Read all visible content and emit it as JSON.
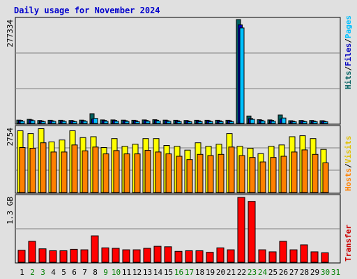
{
  "title": "Daily usage for November 2024",
  "panels": {
    "hits": {
      "ymax_label": "277334",
      "side_labels": [
        "Hits",
        "Files",
        "Pages"
      ]
    },
    "visits": {
      "ymax_label": "2754",
      "side_labels": [
        "Hosts",
        "Visits"
      ]
    },
    "transfer": {
      "ymax_label": "1.3 GB",
      "side_labels": [
        "Transfer"
      ]
    }
  },
  "colors": {
    "hits": "#006060",
    "files": "#0000c0",
    "pages": "#00c0ff",
    "visits": "#ffff00",
    "hosts": "#ff8000",
    "transfer": "#ff0000",
    "weekday_label": "#000000",
    "weekend_label": "#008000",
    "title": "#0000cc",
    "background": "#e0e0e0"
  },
  "chart_data": [
    {
      "type": "bar",
      "title": "Daily usage for November 2024",
      "categories": [
        "1",
        "2",
        "3",
        "4",
        "5",
        "6",
        "7",
        "8",
        "9",
        "10",
        "11",
        "12",
        "13",
        "14",
        "15",
        "16",
        "17",
        "18",
        "19",
        "20",
        "21",
        "22",
        "23",
        "24",
        "25",
        "26",
        "27",
        "28",
        "29",
        "30",
        "31"
      ],
      "weekend_days": [
        "2",
        "3",
        "9",
        "10",
        "16",
        "17",
        "23",
        "24",
        "30",
        "31"
      ],
      "ylim": [
        0,
        277334
      ],
      "series": [
        {
          "name": "Hits",
          "values": [
            9000,
            11000,
            8000,
            8500,
            8500,
            8000,
            9000,
            26000,
            9500,
            9500,
            9000,
            8500,
            9500,
            10000,
            9000,
            8500,
            8000,
            8500,
            8500,
            8500,
            8500,
            277334,
            20000,
            10000,
            9500,
            22500,
            7500,
            8000,
            8000,
            7500,
            0
          ]
        },
        {
          "name": "Files",
          "values": [
            8000,
            9500,
            6500,
            7000,
            7000,
            6500,
            7500,
            12000,
            8000,
            8000,
            7500,
            7000,
            8000,
            8500,
            7500,
            7000,
            6500,
            7000,
            7000,
            7000,
            7000,
            263000,
            13000,
            8500,
            8000,
            12000,
            6000,
            6500,
            6500,
            6000,
            0
          ]
        },
        {
          "name": "Pages",
          "values": [
            6000,
            7500,
            5000,
            5500,
            5500,
            5000,
            6000,
            13500,
            6000,
            6000,
            5500,
            5000,
            6000,
            6500,
            5500,
            5000,
            4500,
            5000,
            5000,
            5000,
            5000,
            255000,
            11000,
            6500,
            6000,
            14500,
            4500,
            5000,
            5000,
            4500,
            0
          ]
        }
      ]
    },
    {
      "type": "bar",
      "categories": [
        "1",
        "2",
        "3",
        "4",
        "5",
        "6",
        "7",
        "8",
        "9",
        "10",
        "11",
        "12",
        "13",
        "14",
        "15",
        "16",
        "17",
        "18",
        "19",
        "20",
        "21",
        "22",
        "23",
        "24",
        "25",
        "26",
        "27",
        "28",
        "29",
        "30",
        "31"
      ],
      "ylim": [
        0,
        2754
      ],
      "series": [
        {
          "name": "Visits",
          "values": [
            2620,
            2500,
            2710,
            2150,
            2230,
            2620,
            2330,
            2370,
            1910,
            2290,
            1960,
            2050,
            2290,
            2290,
            2000,
            1960,
            1800,
            2110,
            1960,
            2050,
            2500,
            1960,
            1880,
            1650,
            1960,
            2020,
            2370,
            2410,
            2290,
            1830,
            0
          ]
        },
        {
          "name": "Hosts",
          "values": [
            1910,
            1880,
            2110,
            1720,
            1720,
            2020,
            1770,
            1930,
            1640,
            1780,
            1640,
            1640,
            1790,
            1720,
            1640,
            1540,
            1400,
            1620,
            1570,
            1620,
            1930,
            1570,
            1490,
            1300,
            1490,
            1540,
            1720,
            1810,
            1620,
            1260,
            0
          ]
        }
      ]
    },
    {
      "type": "bar",
      "categories": [
        "1",
        "2",
        "3",
        "4",
        "5",
        "6",
        "7",
        "8",
        "9",
        "10",
        "11",
        "12",
        "13",
        "14",
        "15",
        "16",
        "17",
        "18",
        "19",
        "20",
        "21",
        "22",
        "23",
        "24",
        "25",
        "26",
        "27",
        "28",
        "29",
        "30",
        "31"
      ],
      "ylabel": "Transfer",
      "ylim": [
        0,
        1.3
      ],
      "series": [
        {
          "name": "Transfer",
          "values": [
            0.24,
            0.42,
            0.27,
            0.23,
            0.23,
            0.26,
            0.25,
            0.53,
            0.29,
            0.28,
            0.25,
            0.25,
            0.28,
            0.32,
            0.31,
            0.22,
            0.23,
            0.23,
            0.2,
            0.29,
            0.25,
            1.3,
            1.22,
            0.25,
            0.21,
            0.42,
            0.25,
            0.35,
            0.21,
            0.19,
            0
          ]
        }
      ]
    }
  ]
}
